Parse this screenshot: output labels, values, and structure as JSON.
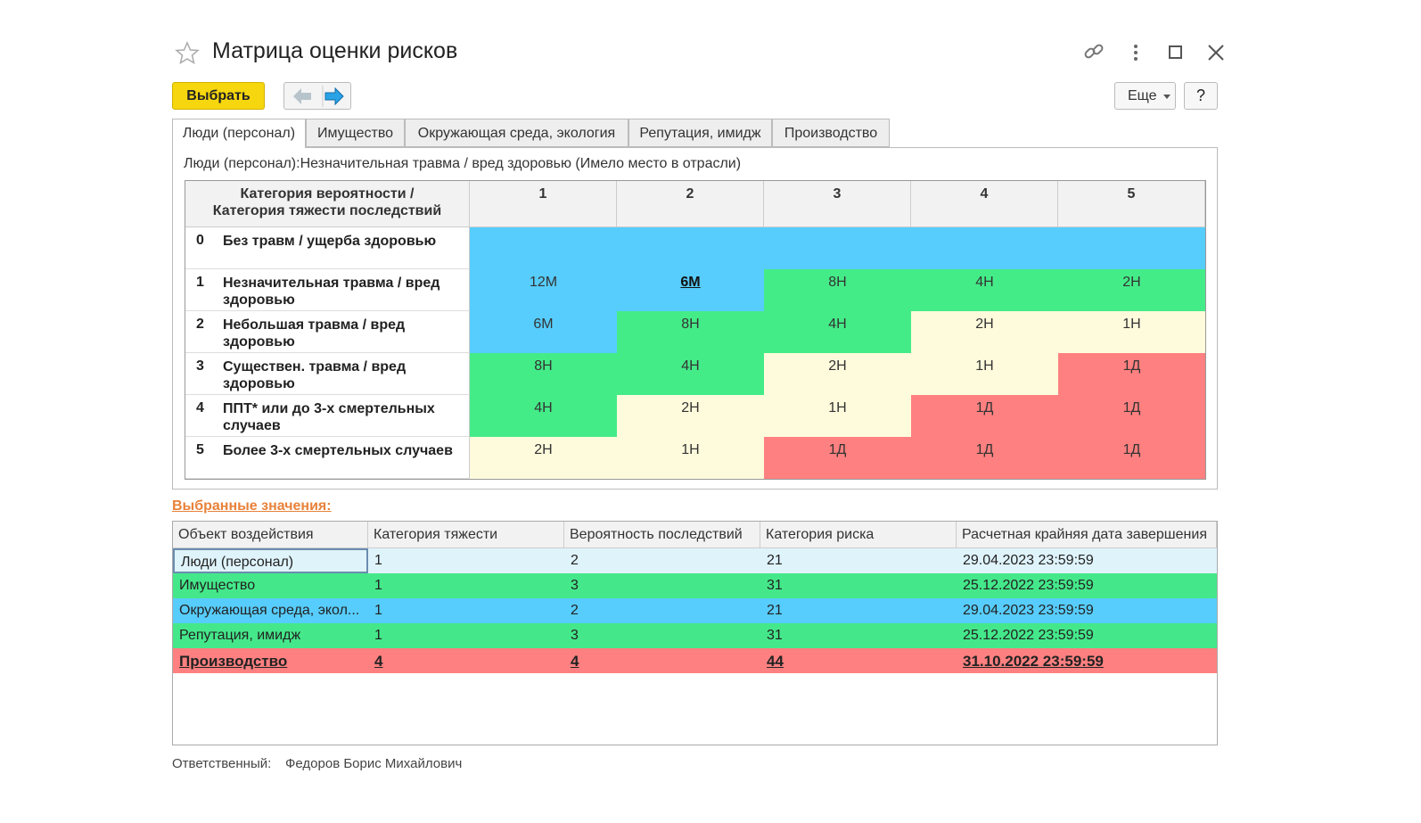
{
  "window": {
    "title": "Матрица оценки рисков"
  },
  "toolbar": {
    "select_button": "Выбрать",
    "more_button": "Еще",
    "help_button": "?"
  },
  "tabs": [
    "Люди (персонал)",
    "Имущество",
    "Окружающая среда, экология",
    "Репутация, имидж",
    "Производство"
  ],
  "matrix": {
    "caption": "Люди (персонал):Незначительная травма / вред здоровью (Имело место в отрасли)",
    "corner": [
      "Категория вероятности /",
      "Категория тяжести последствий"
    ],
    "columns": [
      "1",
      "2",
      "3",
      "4",
      "5"
    ],
    "rows": [
      {
        "num": "0",
        "label": "Без травм / ущерба здоровью",
        "fill": "#57cdfd",
        "cells": []
      },
      {
        "num": "1",
        "label": "Незначительная травма / вред здоровью",
        "cells": [
          {
            "text": "12М",
            "color": "#57cdfd"
          },
          {
            "text": "6М",
            "color": "#57cdfd",
            "selected": true
          },
          {
            "text": "8Н",
            "color": "#44ec88"
          },
          {
            "text": "4Н",
            "color": "#44ec88"
          },
          {
            "text": "2Н",
            "color": "#44ec88"
          }
        ]
      },
      {
        "num": "2",
        "label": "Небольшая травма / вред здоровью",
        "cells": [
          {
            "text": "6М",
            "color": "#57cdfd"
          },
          {
            "text": "8Н",
            "color": "#44ec88"
          },
          {
            "text": "4Н",
            "color": "#44ec88"
          },
          {
            "text": "2Н",
            "color": "#fefbdc"
          },
          {
            "text": "1Н",
            "color": "#fefbdc"
          }
        ]
      },
      {
        "num": "3",
        "label": "Существен. травма / вред здоровью",
        "cells": [
          {
            "text": "8Н",
            "color": "#44ec88"
          },
          {
            "text": "4Н",
            "color": "#44ec88"
          },
          {
            "text": "2Н",
            "color": "#fefbdc"
          },
          {
            "text": "1Н",
            "color": "#fefbdc"
          },
          {
            "text": "1Д",
            "color": "#ff8080"
          }
        ]
      },
      {
        "num": "4",
        "label": "ППТ* или до 3-х смертельных случаев",
        "cells": [
          {
            "text": "4Н",
            "color": "#44ec88"
          },
          {
            "text": "2Н",
            "color": "#fefbdc"
          },
          {
            "text": "1Н",
            "color": "#fefbdc"
          },
          {
            "text": "1Д",
            "color": "#ff8080"
          },
          {
            "text": "1Д",
            "color": "#ff8080"
          }
        ]
      },
      {
        "num": "5",
        "label": "Более 3-х смертельных случаев",
        "cells": [
          {
            "text": "2Н",
            "color": "#fefbdc"
          },
          {
            "text": "1Н",
            "color": "#fefbdc"
          },
          {
            "text": "1Д",
            "color": "#ff8080"
          },
          {
            "text": "1Д",
            "color": "#ff8080"
          },
          {
            "text": "1Д",
            "color": "#ff8080"
          }
        ]
      }
    ]
  },
  "selected": {
    "label": "Выбранные значения:",
    "columns": [
      "Объект воздействия",
      "Категория тяжести",
      "Вероятность последствий",
      "Категория риска",
      "Расчетная крайняя дата завершения"
    ],
    "rows": [
      {
        "color": "#dff3fb",
        "current": true,
        "cells": [
          "Люди (персонал)",
          "1",
          "2",
          "21",
          "29.04.2023 23:59:59"
        ]
      },
      {
        "color": "#44e88a",
        "cells": [
          "Имущество",
          "1",
          "3",
          "31",
          "25.12.2022 23:59:59"
        ]
      },
      {
        "color": "#57cdfd",
        "cells": [
          "Окружающая среда, экол...",
          "1",
          "2",
          "21",
          "29.04.2023 23:59:59"
        ]
      },
      {
        "color": "#44e88a",
        "cells": [
          "Репутация, имидж",
          "1",
          "3",
          "31",
          "25.12.2022 23:59:59"
        ]
      },
      {
        "color": "#ff8080",
        "highlight": true,
        "cells": [
          "Производство",
          "4",
          "4",
          "44",
          "31.10.2022 23:59:59"
        ]
      }
    ]
  },
  "footer": {
    "label": "Ответственный:",
    "value": "Федоров Борис Михайлович"
  }
}
